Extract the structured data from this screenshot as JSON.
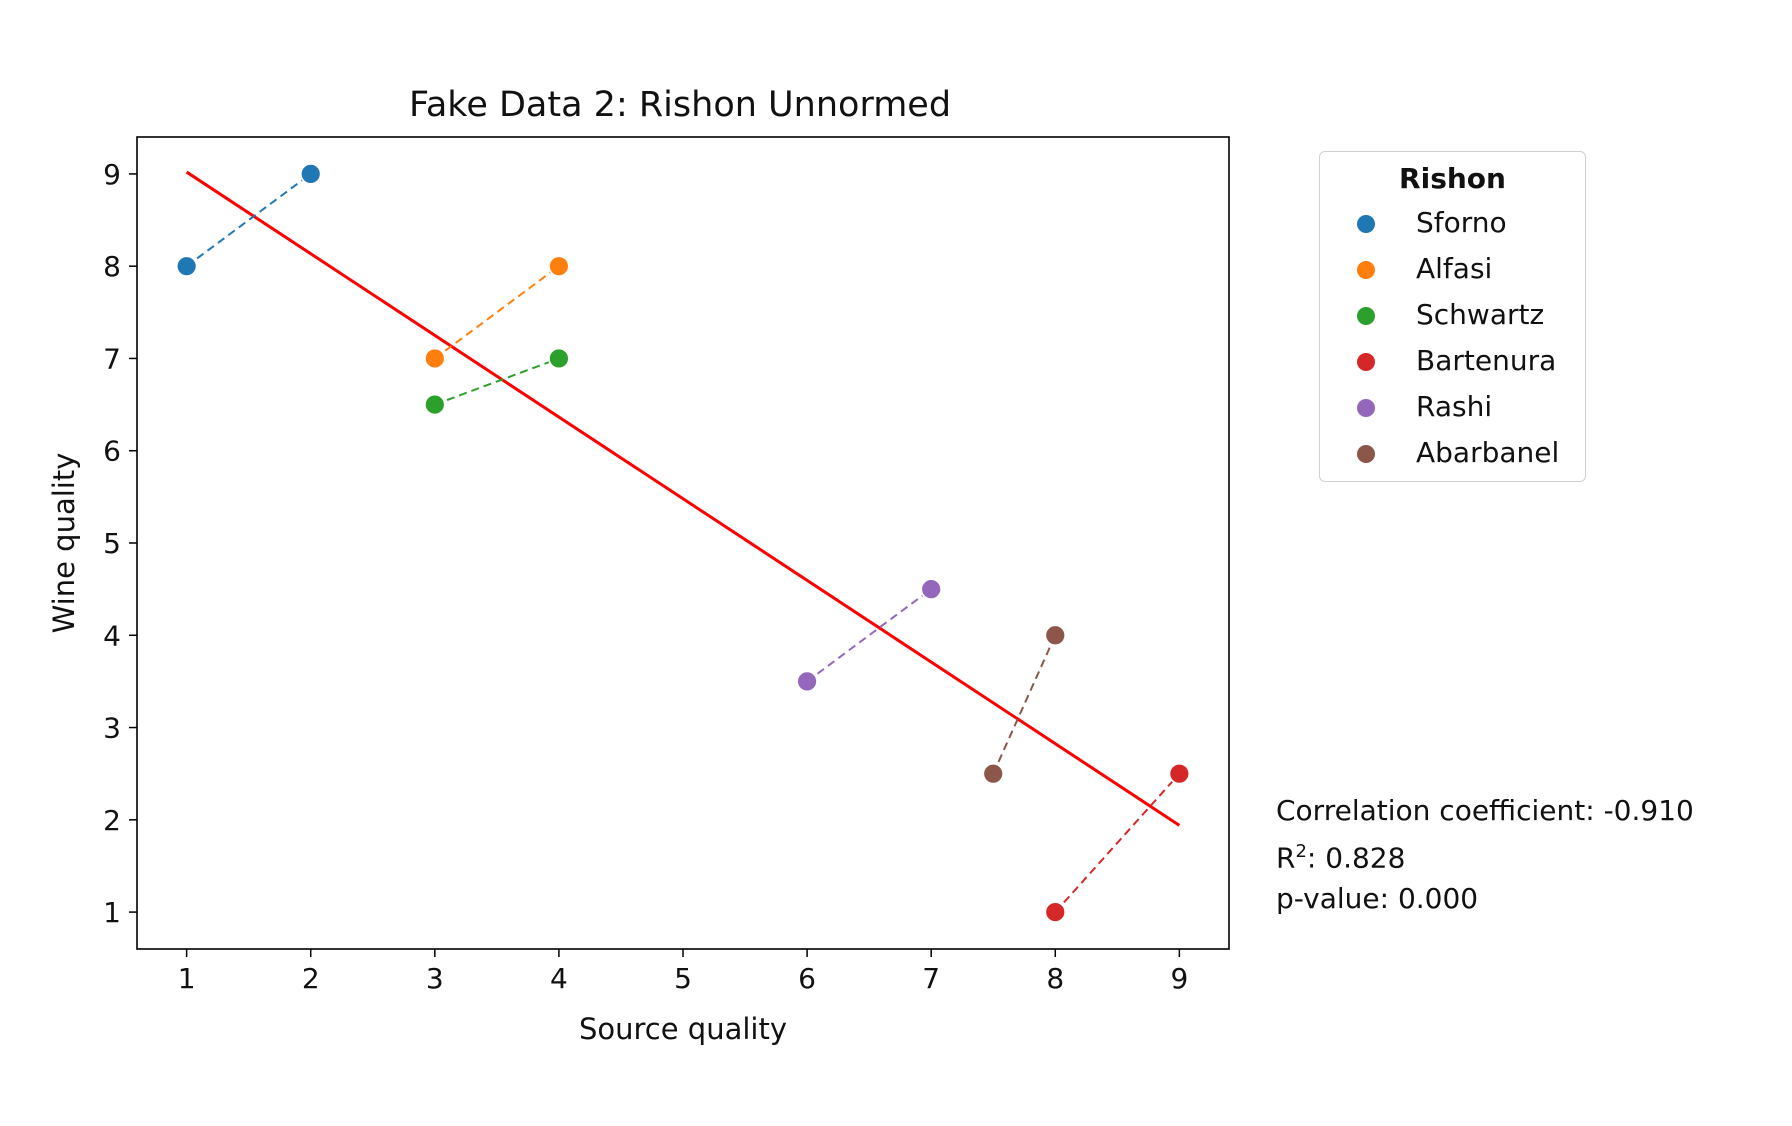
{
  "chart_data": {
    "type": "scatter",
    "title": "Fake Data 2: Rishon Unnormed",
    "xlabel": "Source quality",
    "ylabel": "Wine quality",
    "xlim": [
      0.6,
      9.4
    ],
    "ylim": [
      0.6,
      9.4
    ],
    "xticks": [
      1,
      2,
      3,
      4,
      5,
      6,
      7,
      8,
      9
    ],
    "yticks": [
      1,
      2,
      3,
      4,
      5,
      6,
      7,
      8,
      9
    ],
    "grid": false,
    "legend": {
      "title": "Rishon",
      "placement": "outside upper right"
    },
    "series": [
      {
        "name": "Sforno",
        "color": "#1f77b4",
        "points": [
          [
            1,
            8
          ],
          [
            2,
            9
          ]
        ]
      },
      {
        "name": "Alfasi",
        "color": "#ff7f0e",
        "points": [
          [
            3,
            7
          ],
          [
            4,
            8
          ]
        ]
      },
      {
        "name": "Schwartz",
        "color": "#2ca02c",
        "points": [
          [
            3,
            6.5
          ],
          [
            4,
            7
          ]
        ]
      },
      {
        "name": "Bartenura",
        "color": "#d62728",
        "points": [
          [
            8,
            1
          ],
          [
            9,
            2.5
          ]
        ]
      },
      {
        "name": "Rashi",
        "color": "#9467bd",
        "points": [
          [
            6,
            3.5
          ],
          [
            7,
            4.5
          ]
        ]
      },
      {
        "name": "Abarbanel",
        "color": "#8c564b",
        "points": [
          [
            7.5,
            2.5
          ],
          [
            8,
            4
          ]
        ]
      }
    ],
    "regression_line": {
      "color": "#ff0000",
      "points": [
        [
          1,
          9.02
        ],
        [
          9,
          1.94
        ]
      ]
    }
  },
  "stats": {
    "correlation": "Correlation coefficient: -0.910",
    "r2_prefix": "R",
    "r2_sup": "2",
    "r2_value": ": 0.828",
    "pvalue": "p-value: 0.000"
  }
}
